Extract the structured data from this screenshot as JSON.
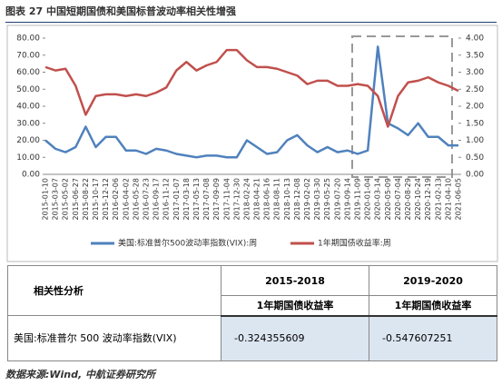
{
  "figure_title": "图表 27 中国短期国债和美国标普波动率相关性增强",
  "chart_data": {
    "type": "line",
    "categories": [
      "2015-01-10",
      "2015-03-07",
      "2015-05-02",
      "2015-06-27",
      "2015-08-22",
      "2015-10-17",
      "2015-12-12",
      "2016-02-06",
      "2016-04-02",
      "2016-05-28",
      "2016-07-23",
      "2016-09-17",
      "2016-11-12",
      "2017-01-07",
      "2017-03-18",
      "2017-05-13",
      "2017-07-08",
      "2017-09-09",
      "2017-11-04",
      "2017-12-30",
      "2018-02-24",
      "2018-04-21",
      "2018-06-16",
      "2018-08-11",
      "2018-10-13",
      "2018-12-08",
      "2019-02-02",
      "2019-03-30",
      "2019-05-25",
      "2019-07-20",
      "2019-09-14",
      "2019-11-09",
      "2020-01-04",
      "2020-03-14",
      "2020-05-09",
      "2020-07-04",
      "2020-08-29",
      "2020-10-24",
      "2020-12-19",
      "2021-02-13",
      "2021-04-10",
      "2021-06-05"
    ],
    "series": [
      {
        "name": "美国:标准普尔500波动率指数(VIX):周",
        "color": "#4f81bd",
        "values": [
          20,
          15,
          13,
          16,
          28,
          16,
          22,
          22,
          14,
          14,
          12,
          15,
          14,
          12,
          11,
          10,
          11,
          11,
          10,
          10,
          20,
          16,
          12,
          13,
          20,
          23,
          17,
          13,
          16,
          13,
          14,
          12,
          14,
          75,
          30,
          27,
          23,
          30,
          22,
          22,
          17,
          17
        ]
      },
      {
        "name": "1年期国债收益率:周",
        "color": "#c0504d",
        "axis": "y2",
        "values": [
          3.15,
          3.05,
          3.1,
          2.6,
          1.75,
          2.3,
          2.35,
          2.35,
          2.3,
          2.35,
          2.3,
          2.4,
          2.55,
          3.05,
          3.3,
          3.05,
          3.2,
          3.3,
          3.65,
          3.65,
          3.35,
          3.15,
          3.15,
          3.1,
          3.0,
          2.9,
          2.65,
          2.75,
          2.75,
          2.6,
          2.6,
          2.65,
          2.6,
          2.3,
          1.4,
          2.3,
          2.7,
          2.75,
          2.85,
          2.7,
          2.6,
          2.45
        ]
      }
    ],
    "ylim": [
      0,
      80
    ],
    "yticks": [
      {
        "value": 0,
        "label": "0.00"
      },
      {
        "value": 10,
        "label": "10.00"
      },
      {
        "value": 20,
        "label": "20.00"
      },
      {
        "value": 30,
        "label": "30.00"
      },
      {
        "value": 40,
        "label": "40.00"
      },
      {
        "value": 50,
        "label": "50.00"
      },
      {
        "value": 60,
        "label": "60.00"
      },
      {
        "value": 70,
        "label": "70.00"
      },
      {
        "value": 80,
        "label": "80.00"
      }
    ],
    "y2lim": [
      0,
      4
    ],
    "y2ticks": [
      {
        "value": 0,
        "label": "0.00"
      },
      {
        "value": 0.5,
        "label": "0.50"
      },
      {
        "value": 1,
        "label": "1.00"
      },
      {
        "value": 1.5,
        "label": "1.50"
      },
      {
        "value": 2,
        "label": "2.00"
      },
      {
        "value": 2.5,
        "label": "2.50"
      },
      {
        "value": 3,
        "label": "3.00"
      },
      {
        "value": 3.5,
        "label": "3.50"
      },
      {
        "value": 4,
        "label": "4.00"
      }
    ],
    "legend": "bottom"
  },
  "table": {
    "header": [
      "相关性分析",
      "2015-2018",
      "2019-2020"
    ],
    "subheader": [
      "1年期国债收益率",
      "1年期国债收益率"
    ],
    "rows": [
      [
        "美国:标准普尔 500 波动率指数(VIX)",
        -0.324355609,
        -0.547607251
      ]
    ]
  },
  "source": "数据来源:Wind, 中航证券研究所"
}
